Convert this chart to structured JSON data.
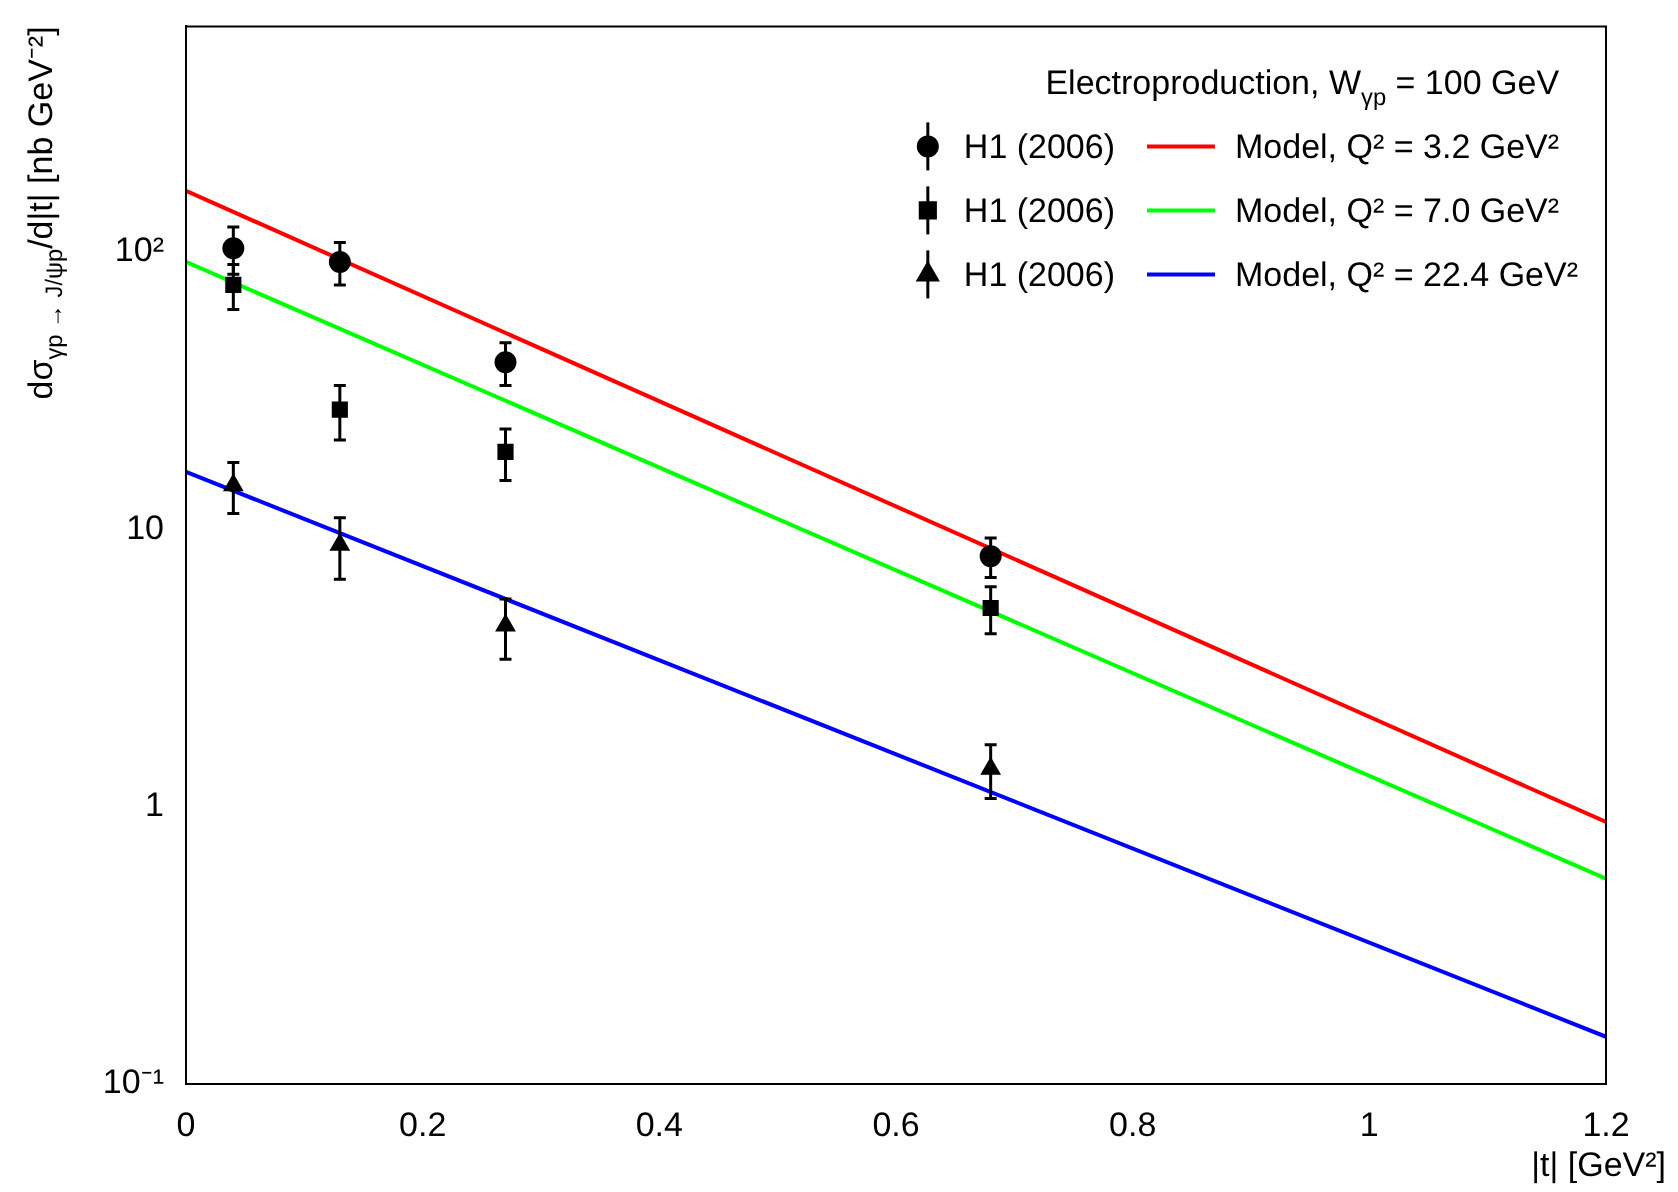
{
  "chart_data": {
    "type": "scatter",
    "legend_title": "Electroproduction, W$_{γp}$ = 100 GeV",
    "xlabel": "|t| [GeV²]",
    "ylabel": "dσ$_{γp → J/ψp}$/d|t| [nb GeV⁻²]",
    "log": "y",
    "grid": false,
    "legend": "top right",
    "xlim": [
      0,
      1.2
    ],
    "xticks": [
      0,
      0.2,
      0.4,
      0.6,
      0.8,
      1,
      1.2
    ],
    "ylim": [
      0.1,
      650
    ],
    "yticks": [
      {
        "value": 0.1,
        "label": "10⁻¹"
      },
      1,
      10,
      {
        "value": 100,
        "label": "10²"
      }
    ],
    "series": [
      {
        "name": "H1 (2006)",
        "type": "scatter",
        "marker": "circle",
        "color": "#000000",
        "x": [
          0.04,
          0.13,
          0.27,
          0.68
        ],
        "values": [
          103,
          92,
          40,
          8
        ],
        "errors": [
          20,
          16,
          7,
          1.3
        ]
      },
      {
        "name": "H1 (2006)",
        "type": "scatter",
        "marker": "square",
        "color": "#000000",
        "x": [
          0.04,
          0.13,
          0.27,
          0.68
        ],
        "values": [
          76,
          27,
          19,
          5.2
        ],
        "errors": [
          14,
          6,
          4,
          1
        ]
      },
      {
        "name": "H1 (2006)",
        "type": "scatter",
        "marker": "triangle",
        "color": "#000000",
        "x": [
          0.04,
          0.13,
          0.27,
          0.68
        ],
        "values": [
          14.4,
          8.8,
          4.5,
          1.37
        ],
        "errors": [
          3,
          2.2,
          1.1,
          0.3
        ]
      },
      {
        "name": "Model, Q² = 3.2 GeV²",
        "type": "line",
        "marker": "none",
        "line_style": "solid",
        "color": "#ff0000",
        "x": [
          0,
          1.2
        ],
        "values": [
          166,
          0.88
        ]
      },
      {
        "name": "Model, Q² = 7.0 GeV²",
        "type": "line",
        "marker": "none",
        "line_style": "solid",
        "color": "#00ff00",
        "x": [
          0,
          1.2
        ],
        "values": [
          92,
          0.55
        ]
      },
      {
        "name": "Model, Q² = 22.4 GeV²",
        "type": "line",
        "marker": "none",
        "line_style": "solid",
        "color": "#0000ff",
        "x": [
          0,
          1.2
        ],
        "values": [
          16.1,
          0.148
        ]
      }
    ]
  }
}
